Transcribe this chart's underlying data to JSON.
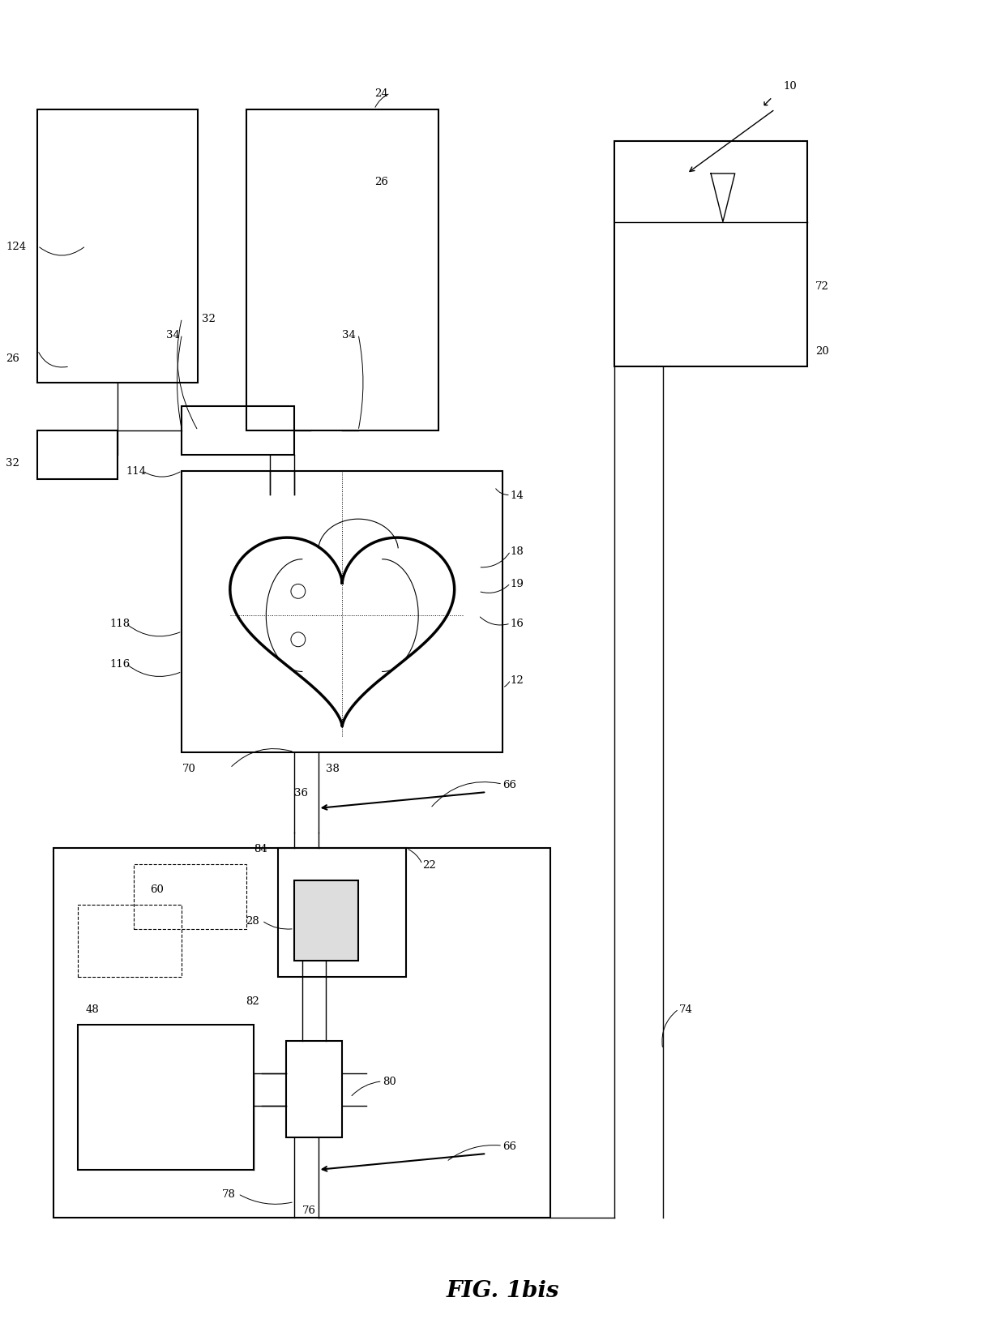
{
  "title": "FIG. 1bis",
  "bg_color": "#ffffff",
  "fig_width": 12.4,
  "fig_height": 16.49
}
